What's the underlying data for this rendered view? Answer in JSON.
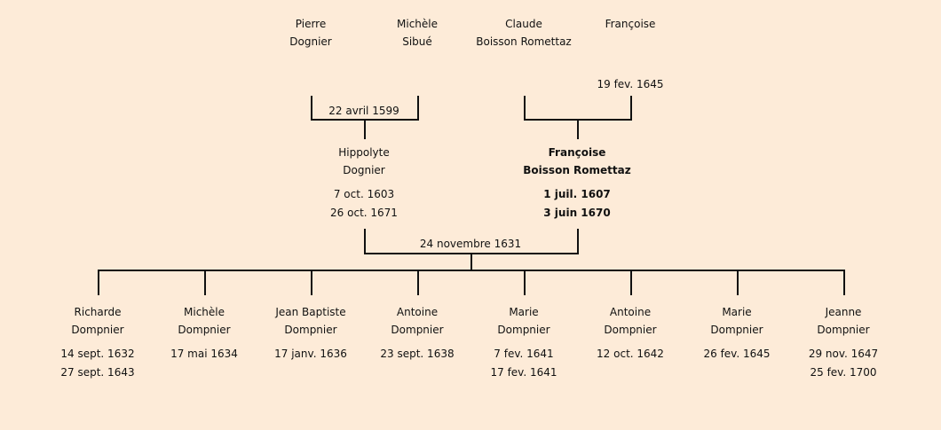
{
  "grandparents": [
    {
      "first": "Pierre",
      "last": "Dognier"
    },
    {
      "first": "Michèle",
      "last": "Sibué"
    },
    {
      "first": "Claude",
      "last": "Boisson Romettaz"
    },
    {
      "first": "Françoise",
      "last": "",
      "date": "19 fev. 1645"
    }
  ],
  "marriage1": "22 avril 1599",
  "father": {
    "first": "Hippolyte",
    "last": "Dognier",
    "birth": "7 oct. 1603",
    "death": "26 oct. 1671"
  },
  "mother": {
    "first": "Françoise",
    "last": "Boisson Romettaz",
    "birth": "1 juil. 1607",
    "death": "3 juin 1670"
  },
  "marriage2": "24 novembre 1631",
  "children": [
    {
      "first": "Richarde",
      "last": "Dompnier",
      "birth": "14 sept. 1632",
      "death": "27 sept. 1643"
    },
    {
      "first": "Michèle",
      "last": "Dompnier",
      "birth": "17 mai 1634",
      "death": ""
    },
    {
      "first": "Jean Baptiste",
      "last": "Dompnier",
      "birth": "17 janv. 1636",
      "death": ""
    },
    {
      "first": "Antoine",
      "last": "Dompnier",
      "birth": "23 sept. 1638",
      "death": ""
    },
    {
      "first": "Marie",
      "last": "Dompnier",
      "birth": "7 fev. 1641",
      "death": "17 fev. 1641"
    },
    {
      "first": "Antoine",
      "last": "Dompnier",
      "birth": "12 oct. 1642",
      "death": ""
    },
    {
      "first": "Marie",
      "last": "Dompnier",
      "birth": "26 fev. 1645",
      "death": ""
    },
    {
      "first": "Jeanne",
      "last": "Dompnier",
      "birth": "29 nov. 1647",
      "death": "25 fev. 1700"
    }
  ]
}
